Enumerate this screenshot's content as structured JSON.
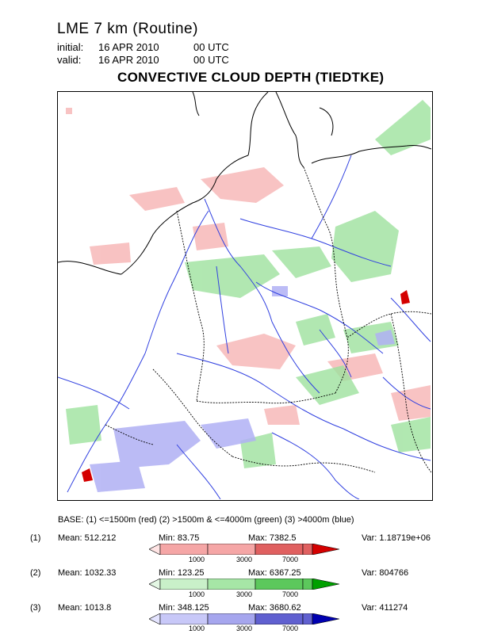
{
  "header": {
    "model_title": "LME 7 km (Routine)",
    "initial_label": "initial:",
    "initial_date": "16 APR 2010",
    "initial_time": "00 UTC",
    "valid_label": "valid:",
    "valid_date": "16 APR 2010",
    "valid_time": "00 UTC",
    "field_title": "CONVECTIVE CLOUD DEPTH (TIEDTKE)"
  },
  "legend": {
    "base_line": "BASE: (1) <=1500m (red)   (2) >1500m & <=4000m (green)   (3) >4000m (blue)",
    "rows": [
      {
        "index": "(1)",
        "mean": "Mean: 512.212",
        "min": "Min: 83.75",
        "max": "Max: 7382.5",
        "var": "Var: 1.18719e+06",
        "ticks": [
          "1000",
          "3000",
          "7000"
        ],
        "colors": [
          "#ffe4e4",
          "#f5a6a6",
          "#e06060",
          "#d40000"
        ]
      },
      {
        "index": "(2)",
        "mean": "Mean: 1032.33",
        "min": "Min: 123.25",
        "max": "Max: 6367.25",
        "var": "Var: 804766",
        "ticks": [
          "1000",
          "3000",
          "7000"
        ],
        "colors": [
          "#e4f7e4",
          "#a6e6a6",
          "#5cc85c",
          "#00a000"
        ]
      },
      {
        "index": "(3)",
        "mean": "Mean: 1013.8",
        "min": "Min: 348.125",
        "max": "Max: 3680.62",
        "var": "Var: 411274",
        "ticks": [
          "1000",
          "3000",
          "7000"
        ],
        "colors": [
          "#e4e4ff",
          "#a6a6ee",
          "#6060d0",
          "#0000b0"
        ]
      }
    ]
  },
  "map": {
    "colors": {
      "coastline": "#000000",
      "rivers": "#3040e0",
      "red": "#f7b8b8",
      "green": "#9ee29e",
      "blue": "#b0b0f4"
    }
  }
}
